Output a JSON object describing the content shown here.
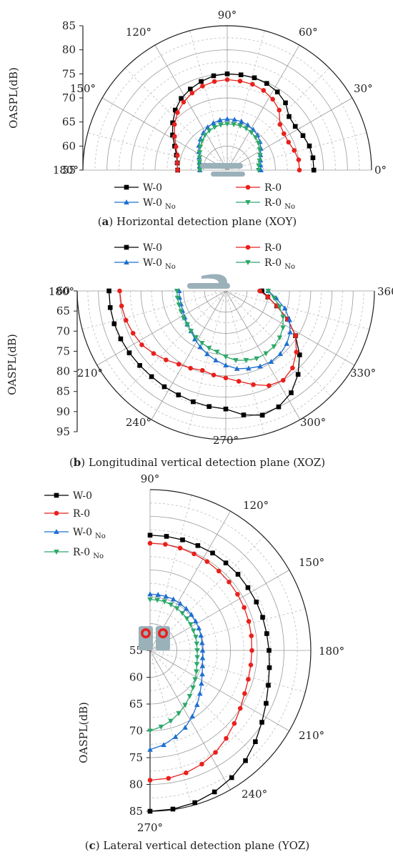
{
  "chart_data": [
    {
      "type": "polar-line",
      "caption_letter": "a",
      "caption_text": " Horizontal detection plane (XOY)",
      "ylabel": "OASPL(dB)",
      "radial_range": [
        55,
        85
      ],
      "radial_ticks": [
        "55",
        "60",
        "65",
        "70",
        "75",
        "80",
        "85"
      ],
      "angle_labels": [
        "0°",
        "30°",
        "60°",
        "90°",
        "120°",
        "150°",
        "180°"
      ],
      "angles_deg": [
        0,
        8.2,
        16.4,
        24.5,
        32.7,
        40.9,
        49.1,
        57.3,
        65.5,
        73.6,
        81.8,
        90,
        98.2,
        106.4,
        114.5,
        122.7,
        130.9,
        139.1,
        147.3,
        155.5,
        163.6,
        171.8,
        180
      ],
      "series": [
        {
          "name": "W-0",
          "sub": "",
          "color": "#000000",
          "marker": "square",
          "values": [
            73,
            73,
            72.8,
            72.3,
            71.8,
            72,
            73.5,
            74.3,
            74.8,
            75,
            75,
            75,
            74.8,
            74.2,
            73.5,
            72.7,
            71.5,
            70,
            68.5,
            67,
            66,
            65.5,
            65.3
          ]
        },
        {
          "name": "R-0",
          "sub": "",
          "color": "#e8211d",
          "marker": "circle",
          "values": [
            70,
            70,
            69.5,
            69,
            69,
            69.5,
            71.5,
            72.5,
            73.2,
            73.6,
            73.7,
            73.8,
            73.6,
            73.2,
            72.6,
            71.8,
            70.8,
            69.5,
            68,
            66.7,
            65.8,
            65.5,
            65.3
          ]
        },
        {
          "name": "W-0",
          "sub": "No",
          "color": "#1f6fd0",
          "marker": "triangle-up",
          "values": [
            62,
            62,
            62.2,
            62.6,
            63.3,
            64,
            64.6,
            65,
            65.3,
            65.5,
            65.6,
            65.6,
            65.5,
            65.2,
            64.8,
            64.2,
            63.5,
            62.8,
            62,
            61.4,
            61,
            60.8,
            60.7
          ]
        },
        {
          "name": "R-0",
          "sub": "No",
          "color": "#2ea86a",
          "marker": "triangle-down",
          "values": [
            61.5,
            61.6,
            62,
            62.5,
            63,
            63.6,
            64,
            64.3,
            64.5,
            64.6,
            64.6,
            64.6,
            64.5,
            64.3,
            64,
            63.6,
            63,
            62.4,
            61.8,
            61.3,
            61,
            60.8,
            60.7
          ]
        }
      ]
    },
    {
      "type": "polar-line",
      "caption_letter": "b",
      "caption_text": " Longitudinal vertical detection plane (XOZ)",
      "ylabel": "OASPL(dB)",
      "radial_range": [
        60,
        95
      ],
      "radial_ticks": [
        "60",
        "65",
        "70",
        "75",
        "80",
        "85",
        "90",
        "95"
      ],
      "angle_labels": [
        "180°",
        "210°",
        "240°",
        "270°",
        "300°",
        "330°",
        "360°"
      ],
      "angles_deg": [
        180,
        188.2,
        196.4,
        204.5,
        212.7,
        220.9,
        229.1,
        237.3,
        245.5,
        253.6,
        261.8,
        270,
        278.2,
        286.4,
        294.5,
        302.7,
        310.9,
        319.1,
        327.3,
        335.5,
        343.6,
        351.8,
        360
      ],
      "series": [
        {
          "name": "W-0",
          "sub": "",
          "color": "#000000",
          "marker": "square",
          "values": [
            87.5,
            87.5,
            87.4,
            87.2,
            87,
            86.8,
            86.7,
            86.8,
            86.9,
            87.2,
            87.5,
            87.8,
            89.5,
            90.5,
            90,
            88.5,
            86,
            83,
            79.5,
            76,
            72.5,
            70,
            68.5
          ]
        },
        {
          "name": "R-0",
          "sub": "",
          "color": "#e8211d",
          "marker": "circle",
          "values": [
            85,
            84.8,
            84.5,
            84,
            83.5,
            82.5,
            81.5,
            80.5,
            80,
            79.5,
            80,
            80.5,
            81.5,
            83,
            84.5,
            85,
            84,
            82,
            79.5,
            76,
            72.5,
            70,
            68
          ]
        },
        {
          "name": "W-0",
          "sub": "No",
          "color": "#1f6fd0",
          "marker": "triangle-up",
          "values": [
            71,
            71,
            71,
            71.2,
            71.5,
            72,
            72.5,
            73.5,
            74.5,
            75.5,
            76.5,
            77.5,
            78.5,
            79,
            79.5,
            79.8,
            79.6,
            79,
            78,
            76.5,
            74.5,
            72,
            70
          ]
        },
        {
          "name": "R-0",
          "sub": "No",
          "color": "#2ea86a",
          "marker": "triangle-down",
          "values": [
            71.5,
            71.5,
            71.5,
            71.6,
            71.8,
            72,
            72.5,
            73,
            73.5,
            74,
            74.5,
            75.5,
            76.5,
            77,
            77.5,
            77.5,
            77.3,
            76.8,
            76,
            74.8,
            73.2,
            71.5,
            70
          ]
        }
      ]
    },
    {
      "type": "polar-line",
      "caption_letter": "c",
      "caption_text": " Lateral vertical detection plane (YOZ)",
      "ylabel": "OASPL(dB)",
      "radial_range": [
        55,
        85
      ],
      "radial_ticks": [
        "55",
        "60",
        "65",
        "70",
        "75",
        "80",
        "85"
      ],
      "angle_labels": [
        "90°",
        "120°",
        "150°",
        "180°",
        "210°",
        "240°",
        "270°"
      ],
      "angles_deg": [
        90,
        98.2,
        106.4,
        114.5,
        122.7,
        130.9,
        139.1,
        147.3,
        155.5,
        163.6,
        171.8,
        180,
        188.2,
        196.4,
        204.5,
        212.7,
        220.9,
        229.1,
        237.3,
        245.5,
        253.6,
        261.8,
        270
      ],
      "series": [
        {
          "name": "W-0",
          "sub": "",
          "color": "#000000",
          "marker": "square",
          "values": [
            76.5,
            76.5,
            76.5,
            76.5,
            76.6,
            76.6,
            76.7,
            76.7,
            76.8,
            76.9,
            77,
            77.2,
            77.5,
            78,
            78.8,
            79.8,
            81,
            82.2,
            83.2,
            84,
            84.6,
            84.9,
            85
          ]
        },
        {
          "name": "R-0",
          "sub": "",
          "color": "#e8211d",
          "marker": "circle",
          "values": [
            75,
            75,
            74.9,
            74.8,
            74.7,
            74.6,
            74.5,
            74.4,
            74.3,
            74.2,
            74.1,
            74,
            74,
            74.1,
            74.4,
            75,
            75.8,
            76.7,
            77.6,
            78.3,
            78.8,
            79.1,
            79.2
          ]
        },
        {
          "name": "W-0",
          "sub": "No",
          "color": "#1f6fd0",
          "marker": "triangle-up",
          "values": [
            65.5,
            65.5,
            65.5,
            65.5,
            65.4,
            65.3,
            65.2,
            65.1,
            65,
            64.9,
            64.8,
            64.8,
            64.9,
            65.2,
            65.7,
            66.4,
            67.3,
            68.4,
            69.6,
            70.8,
            71.8,
            72.8,
            73.5
          ]
        },
        {
          "name": "R-0",
          "sub": "No",
          "color": "#2ea86a",
          "marker": "triangle-down",
          "values": [
            64.5,
            64.5,
            64.5,
            64.4,
            64.3,
            64.2,
            64.1,
            64,
            63.9,
            63.9,
            63.8,
            63.8,
            63.9,
            64.1,
            64.5,
            65,
            65.6,
            66.3,
            67.1,
            67.9,
            68.7,
            69.4,
            70
          ]
        }
      ]
    }
  ]
}
